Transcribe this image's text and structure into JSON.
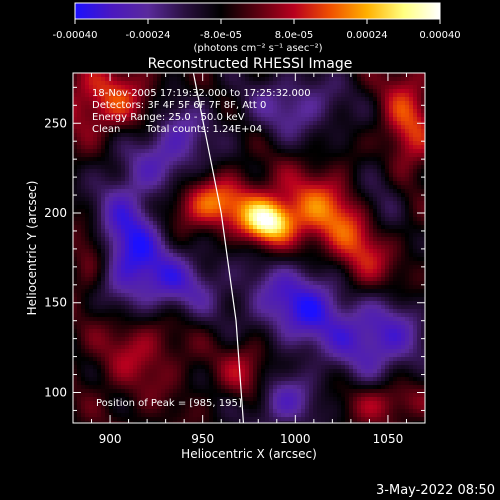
{
  "chart_data": {
    "type": "heatmap",
    "title": "Reconstructed RHESSI Image",
    "xlabel": "Heliocentric X (arcsec)",
    "ylabel": "Heliocentric Y (arcsec)",
    "xlim": [
      880,
      1070
    ],
    "ylim": [
      83,
      278
    ],
    "x_ticks": [
      900,
      950,
      1000,
      1050
    ],
    "y_ticks": [
      100,
      150,
      200,
      250
    ],
    "colorbar": {
      "ticks": [
        "-0.00040",
        "-0.00024",
        "-8.0e-05",
        "8.0e-05",
        "0.00024",
        "0.00040"
      ],
      "unit_text": "(photons cm⁻² s⁻¹ asec⁻²)",
      "min": -0.0004,
      "max": 0.0004,
      "colors": [
        "#1c10ff",
        "#4a18c0",
        "#5a2a9c",
        "#2a1040",
        "#000000",
        "#5a0010",
        "#b8001e",
        "#f05000",
        "#ffb000",
        "#ffff80",
        "#ffffff"
      ]
    },
    "annotations": [
      "18-Nov-2005 17:19:32.000 to 17:25:32.000",
      "Detectors: 3F 4F 5F 6F 7F 8F, Att 0",
      "Energy Range: 25.0 - 50.0 keV",
      "Clean",
      "Total counts: 1.24E+04",
      "Position of Peak = [985, 195]"
    ],
    "peak": {
      "x": 985,
      "y": 195
    },
    "limb_curve": [
      [
        945,
        278
      ],
      [
        960,
        200
      ],
      [
        968,
        140
      ],
      [
        972,
        83
      ]
    ],
    "bright_sources": [
      {
        "x": 985,
        "y": 195,
        "amp": 1.0,
        "sx": 9,
        "sy": 8
      },
      {
        "x": 955,
        "y": 205,
        "amp": 0.7,
        "sx": 18,
        "sy": 10
      },
      {
        "x": 1015,
        "y": 200,
        "amp": 0.65,
        "sx": 20,
        "sy": 16
      },
      {
        "x": 1035,
        "y": 170,
        "amp": 0.55,
        "sx": 12,
        "sy": 18
      },
      {
        "x": 1060,
        "y": 240,
        "amp": 0.6,
        "sx": 10,
        "sy": 30
      },
      {
        "x": 900,
        "y": 262,
        "amp": 0.55,
        "sx": 20,
        "sy": 14
      },
      {
        "x": 915,
        "y": 130,
        "amp": 0.45,
        "sx": 16,
        "sy": 20
      },
      {
        "x": 975,
        "y": 110,
        "amp": 0.5,
        "sx": 10,
        "sy": 14
      },
      {
        "x": 1050,
        "y": 95,
        "amp": 0.4,
        "sx": 14,
        "sy": 8
      },
      {
        "x": 890,
        "y": 175,
        "amp": 0.4,
        "sx": 8,
        "sy": 14
      }
    ],
    "dark_sources": [
      {
        "x": 910,
        "y": 185,
        "amp": -0.8,
        "sx": 14,
        "sy": 30
      },
      {
        "x": 935,
        "y": 160,
        "amp": -0.6,
        "sx": 18,
        "sy": 14
      },
      {
        "x": 1005,
        "y": 150,
        "amp": -0.8,
        "sx": 22,
        "sy": 18
      },
      {
        "x": 1050,
        "y": 210,
        "amp": -0.6,
        "sx": 14,
        "sy": 18
      },
      {
        "x": 1045,
        "y": 130,
        "amp": -0.7,
        "sx": 18,
        "sy": 16
      },
      {
        "x": 935,
        "y": 240,
        "amp": -0.6,
        "sx": 14,
        "sy": 18
      },
      {
        "x": 1000,
        "y": 260,
        "amp": -0.5,
        "sx": 20,
        "sy": 14
      },
      {
        "x": 990,
        "y": 95,
        "amp": -0.6,
        "sx": 16,
        "sy": 12
      }
    ]
  },
  "footer": {
    "timestamp": "3-May-2022 08:50"
  }
}
